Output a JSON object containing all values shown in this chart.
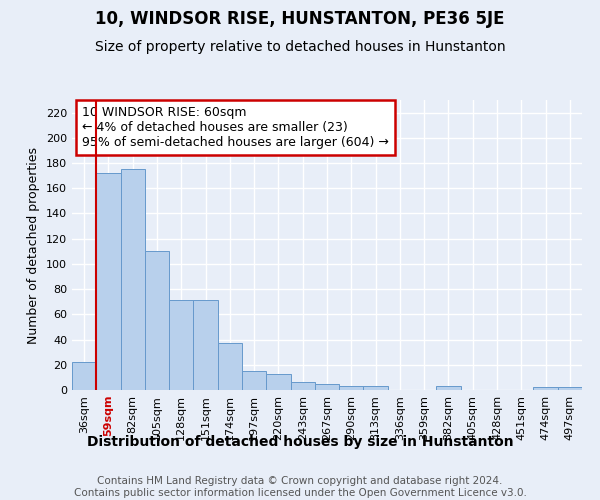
{
  "title": "10, WINDSOR RISE, HUNSTANTON, PE36 5JE",
  "subtitle": "Size of property relative to detached houses in Hunstanton",
  "xlabel": "Distribution of detached houses by size in Hunstanton",
  "ylabel": "Number of detached properties",
  "categories": [
    "36sqm",
    "59sqm",
    "82sqm",
    "105sqm",
    "128sqm",
    "151sqm",
    "174sqm",
    "197sqm",
    "220sqm",
    "243sqm",
    "267sqm",
    "290sqm",
    "313sqm",
    "336sqm",
    "359sqm",
    "382sqm",
    "405sqm",
    "428sqm",
    "451sqm",
    "474sqm",
    "497sqm"
  ],
  "values": [
    22,
    172,
    175,
    110,
    71,
    71,
    37,
    15,
    13,
    6,
    5,
    3,
    3,
    0,
    0,
    3,
    0,
    0,
    0,
    2,
    2
  ],
  "bar_color": "#b8d0ec",
  "bar_edge_color": "#6699cc",
  "bg_color": "#e8eef8",
  "grid_color": "#ffffff",
  "red_line_index": 1,
  "annotation_text": "10 WINDSOR RISE: 60sqm\n← 4% of detached houses are smaller (23)\n95% of semi-detached houses are larger (604) →",
  "annotation_box_color": "#ffffff",
  "annotation_box_edge": "#cc0000",
  "ylim": [
    0,
    230
  ],
  "yticks": [
    0,
    20,
    40,
    60,
    80,
    100,
    120,
    140,
    160,
    180,
    200,
    220
  ],
  "footnote": "Contains HM Land Registry data © Crown copyright and database right 2024.\nContains public sector information licensed under the Open Government Licence v3.0.",
  "title_fontsize": 12,
  "subtitle_fontsize": 10,
  "xlabel_fontsize": 10,
  "ylabel_fontsize": 9,
  "tick_fontsize": 8,
  "annotation_fontsize": 9,
  "footnote_fontsize": 7.5
}
